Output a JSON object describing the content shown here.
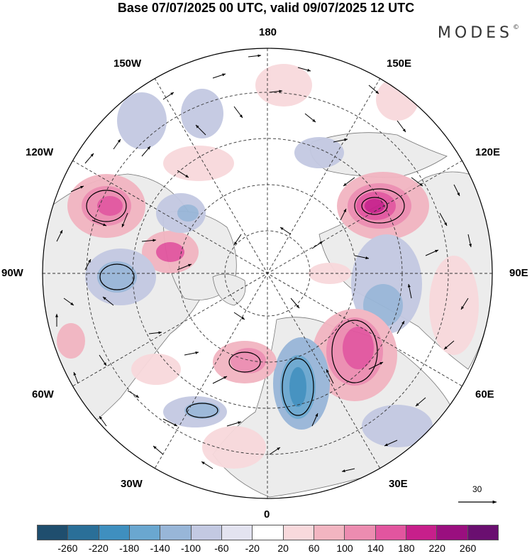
{
  "title": "Base 07/07/2025 00 UTC, valid 09/07/2025 12 UTC",
  "brand": {
    "name": "MODES",
    "mark": "©"
  },
  "longitude_labels": {
    "lon_180": "180",
    "lon_150w": "150W",
    "lon_150e": "150E",
    "lon_120w": "120W",
    "lon_120e": "120E",
    "lon_90w": "90W",
    "lon_90e": "90E",
    "lon_60w": "60W",
    "lon_60e": "60E",
    "lon_30w": "30W",
    "lon_30e": "30E",
    "lon_0": "0"
  },
  "reference_vector": {
    "label": "30"
  },
  "colorbar": {
    "colors": [
      "#1f4e6e",
      "#2a6f98",
      "#3f8fbf",
      "#6aa7d0",
      "#98b6d8",
      "#c3c9e2",
      "#e3e3f0",
      "#ffffff",
      "#f8d9dc",
      "#f2b5c1",
      "#ec8cb0",
      "#e2559f",
      "#c71f8b",
      "#9a0f7f",
      "#6a0f70"
    ],
    "ticks": [
      "-260",
      "-220",
      "-180",
      "-140",
      "-100",
      "-60",
      "-20",
      "20",
      "60",
      "100",
      "140",
      "180",
      "220",
      "260"
    ]
  }
}
